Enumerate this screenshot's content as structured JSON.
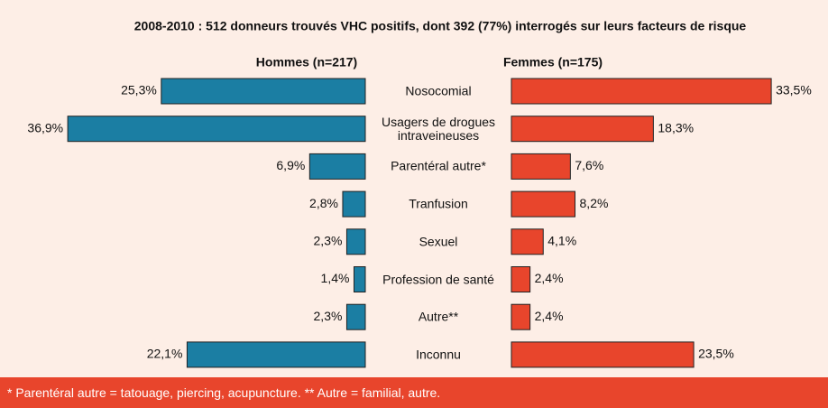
{
  "chart_data": {
    "type": "butterfly-bar",
    "title": "2008-2010 : 512 donneurs trouvés VHC positifs, dont 392 (77%) interrogés sur leurs facteurs de risque",
    "categories": [
      "Nosocomial",
      "Usagers de drogues intraveineuses",
      "Parentéral autre*",
      "Tranfusion",
      "Sexuel",
      "Profession de santé",
      "Autre**",
      "Inconnu"
    ],
    "series": [
      {
        "name": "Hommes (n=217)",
        "color": "#1b7ea3",
        "values": [
          25.3,
          36.9,
          6.9,
          2.8,
          2.3,
          1.4,
          2.3,
          22.1
        ],
        "value_labels": [
          "25,3%",
          "36,9%",
          "6,9%",
          "2,8%",
          "2,3%",
          "1,4%",
          "2,3%",
          "22,1%"
        ]
      },
      {
        "name": "Femmes (n=175)",
        "color": "#e8452c",
        "values": [
          33.5,
          18.3,
          7.6,
          8.2,
          4.1,
          2.4,
          2.4,
          23.5
        ],
        "value_labels": [
          "33,5%",
          "18,3%",
          "7,6%",
          "8,2%",
          "4,1%",
          "2,4%",
          "2,4%",
          "23,5%"
        ]
      }
    ],
    "footnote": "* Parentéral autre = tatouage, piercing, acupuncture. ** Autre = familial, autre."
  }
}
